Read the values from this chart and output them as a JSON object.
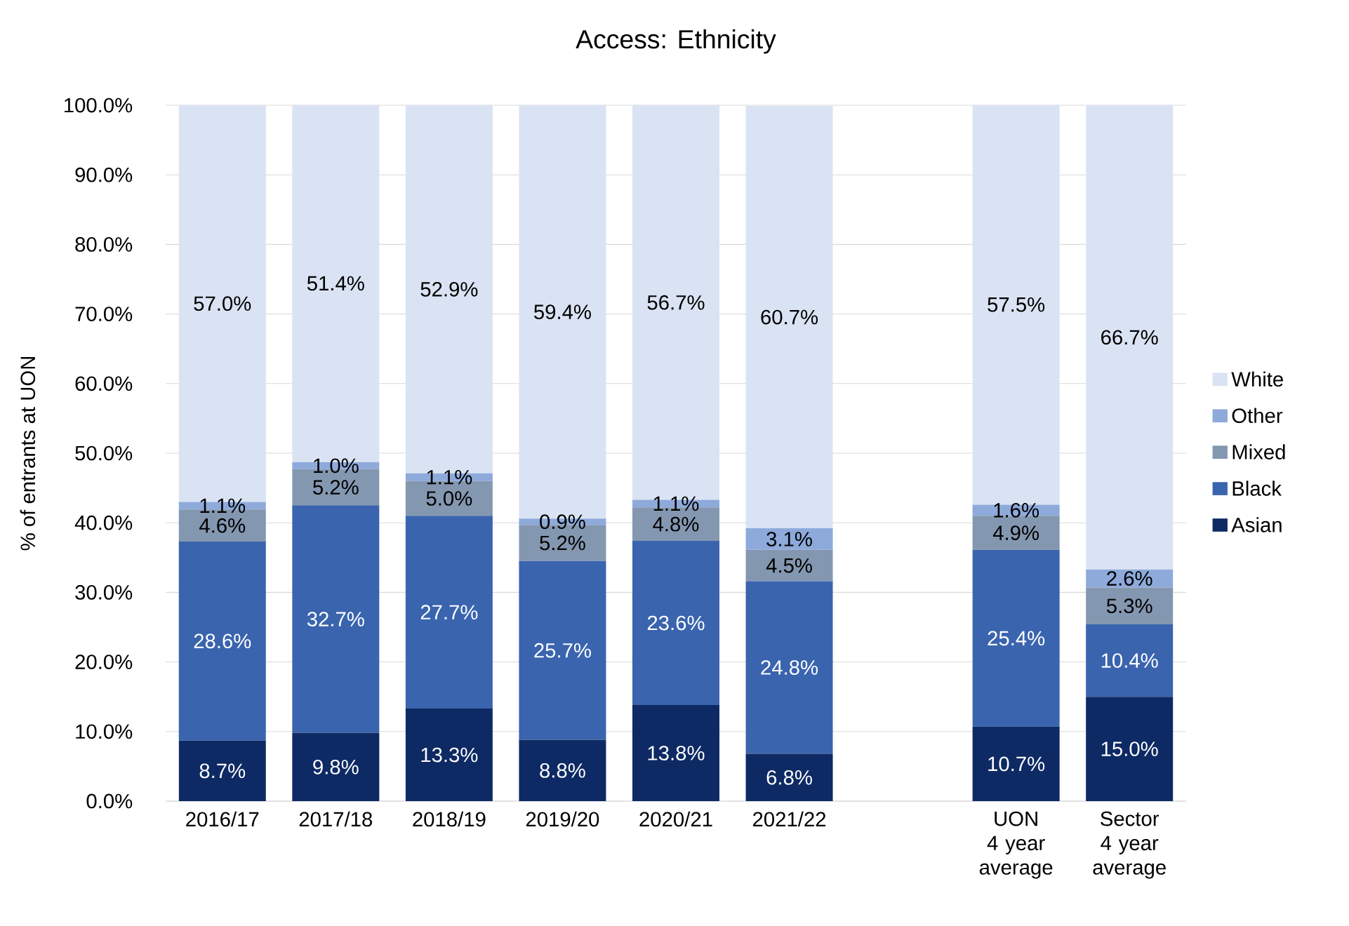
{
  "chart_data": {
    "type": "bar",
    "title": "Access: Ethnicity",
    "ylabel": "% of entrants at UON",
    "categories": [
      "2016/17",
      "2017/18",
      "2018/19",
      "2019/20",
      "2020/21",
      "2021/22",
      null,
      "UON 4 year average",
      "Sector 4 year average"
    ],
    "stacked": true,
    "series": [
      {
        "name": "Asian",
        "color": "#0e2a64",
        "values": [
          8.7,
          9.8,
          13.3,
          8.8,
          13.8,
          6.8,
          null,
          10.7,
          15.0
        ],
        "value_labels": [
          "8.7%",
          "9.8%",
          "13.3%",
          "8.8%",
          "13.8%",
          "6.8%",
          null,
          "10.7%",
          "15.0%"
        ]
      },
      {
        "name": "Black",
        "color": "#3a64ae",
        "values": [
          28.6,
          32.7,
          27.7,
          25.7,
          23.6,
          24.8,
          null,
          25.4,
          10.4
        ],
        "value_labels": [
          "28.6%",
          "32.7%",
          "27.7%",
          "25.7%",
          "23.6%",
          "24.8%",
          null,
          "25.4%",
          "10.4%"
        ]
      },
      {
        "name": "Mixed",
        "color": "#8497b0",
        "values": [
          4.6,
          5.2,
          5.0,
          5.2,
          4.8,
          4.5,
          null,
          4.9,
          5.3
        ],
        "value_labels": [
          "4.6%",
          "5.2%",
          "5.0%",
          "5.2%",
          "4.8%",
          "4.5%",
          null,
          "4.9%",
          "5.3%"
        ]
      },
      {
        "name": "Other",
        "color": "#8eaadb",
        "values": [
          1.1,
          1.0,
          1.1,
          0.9,
          1.1,
          3.1,
          null,
          1.6,
          2.6
        ],
        "value_labels": [
          "1.1%",
          "1.0%",
          "1.1%",
          "0.9%",
          "1.1%",
          "3.1%",
          null,
          "1.6%",
          "2.6%"
        ]
      },
      {
        "name": "White",
        "color": "#dae3f3",
        "values": [
          57.0,
          51.4,
          52.9,
          59.4,
          56.7,
          60.7,
          null,
          57.5,
          66.7
        ],
        "value_labels": [
          "57.0%",
          "51.4%",
          "52.9%",
          "59.4%",
          "56.7%",
          "60.7%",
          null,
          "57.5%",
          "66.7%"
        ]
      }
    ],
    "ylim": [
      0,
      100
    ],
    "yticks": [
      {
        "value": 0,
        "label": "0.0%"
      },
      {
        "value": 10,
        "label": "10.0%"
      },
      {
        "value": 20,
        "label": "20.0%"
      },
      {
        "value": 30,
        "label": "30.0%"
      },
      {
        "value": 40,
        "label": "40.0%"
      },
      {
        "value": 50,
        "label": "50.0%"
      },
      {
        "value": 60,
        "label": "60.0%"
      },
      {
        "value": 70,
        "label": "70.0%"
      },
      {
        "value": 80,
        "label": "80.0%"
      },
      {
        "value": 90,
        "label": "90.0%"
      },
      {
        "value": 100,
        "label": "100.0%"
      }
    ],
    "grid": "y",
    "legend": "right"
  }
}
